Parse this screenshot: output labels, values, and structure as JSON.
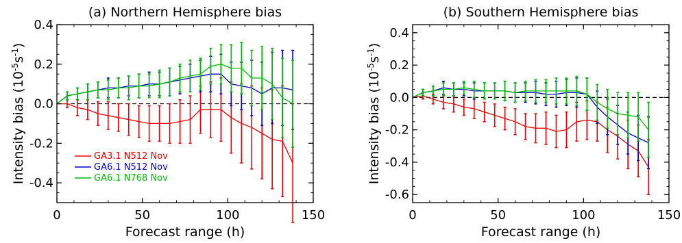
{
  "chart_data": [
    {
      "type": "line",
      "title": "(a) Northern Hemisphere bias",
      "xlabel": "Forecast range (h)",
      "ylabel": "Intensity bias (10",
      "ylabel_exponent": "-5",
      "ylabel_unit": "s",
      "ylabel_unit_exponent": "-1",
      "ylabel_close": ")",
      "xlim": [
        0,
        150
      ],
      "ylim": [
        -0.5,
        0.4
      ],
      "xticks": [
        0,
        50,
        100,
        150
      ],
      "xtick_labels": [
        "0",
        "50",
        "100",
        "150"
      ],
      "yticks": [
        -0.4,
        -0.2,
        0.0,
        0.2,
        0.4
      ],
      "ytick_labels": [
        "-0.4",
        "-0.2",
        "0.0",
        "0.2",
        "0.4"
      ],
      "zero_line": true,
      "legend": "lower-left",
      "x": [
        0,
        6,
        12,
        18,
        24,
        30,
        36,
        42,
        48,
        54,
        60,
        66,
        72,
        78,
        84,
        90,
        96,
        102,
        108,
        114,
        120,
        126,
        132,
        138
      ],
      "series": [
        {
          "name": "GA3.1 N512 Nov",
          "color": "#ee0000",
          "values": [
            0.0,
            0.0,
            -0.02,
            -0.03,
            -0.05,
            -0.06,
            -0.07,
            -0.08,
            -0.09,
            -0.1,
            -0.1,
            -0.1,
            -0.09,
            -0.08,
            -0.03,
            -0.03,
            -0.03,
            -0.07,
            -0.1,
            -0.12,
            -0.15,
            -0.18,
            -0.19,
            -0.3
          ],
          "errors": [
            0.0,
            0.02,
            0.04,
            0.05,
            0.06,
            0.07,
            0.07,
            0.08,
            0.08,
            0.09,
            0.09,
            0.1,
            0.11,
            0.12,
            0.12,
            0.14,
            0.16,
            0.18,
            0.2,
            0.21,
            0.23,
            0.25,
            0.28,
            0.3
          ]
        },
        {
          "name": "GA6.1 N512 Nov",
          "color": "#0000cc",
          "values": [
            0.0,
            0.04,
            0.05,
            0.06,
            0.07,
            0.08,
            0.08,
            0.09,
            0.09,
            0.1,
            0.1,
            0.11,
            0.12,
            0.13,
            0.14,
            0.15,
            0.15,
            0.1,
            0.09,
            0.08,
            0.05,
            0.08,
            0.08,
            0.07
          ],
          "errors": [
            0.0,
            0.02,
            0.03,
            0.04,
            0.04,
            0.05,
            0.05,
            0.05,
            0.06,
            0.06,
            0.06,
            0.07,
            0.07,
            0.07,
            0.08,
            0.09,
            0.1,
            0.11,
            0.12,
            0.14,
            0.16,
            0.18,
            0.19,
            0.2
          ]
        },
        {
          "name": "GA6.1 N768 Nov",
          "color": "#00bb00",
          "values": [
            0.0,
            0.04,
            0.05,
            0.06,
            0.07,
            0.07,
            0.08,
            0.08,
            0.09,
            0.09,
            0.1,
            0.11,
            0.13,
            0.14,
            0.15,
            0.19,
            0.2,
            0.18,
            0.18,
            0.13,
            0.13,
            0.1,
            0.03,
            0.0
          ],
          "errors": [
            0.0,
            0.02,
            0.03,
            0.04,
            0.04,
            0.05,
            0.05,
            0.06,
            0.06,
            0.06,
            0.07,
            0.07,
            0.07,
            0.08,
            0.08,
            0.09,
            0.1,
            0.12,
            0.13,
            0.14,
            0.16,
            0.18,
            0.2,
            0.22
          ]
        }
      ]
    },
    {
      "type": "line",
      "title": "(b) Southern Hemisphere bias",
      "xlabel": "Forecast range (h)",
      "ylabel": "Intensity bias (10",
      "ylabel_exponent": "-5",
      "ylabel_unit": "s",
      "ylabel_unit_exponent": "-1",
      "ylabel_close": ")",
      "xlim": [
        0,
        150
      ],
      "ylim": [
        -0.65,
        0.45
      ],
      "xticks": [
        0,
        50,
        100,
        150
      ],
      "xtick_labels": [
        "0",
        "50",
        "100",
        "150"
      ],
      "yticks": [
        -0.6,
        -0.4,
        -0.2,
        0.0,
        0.2,
        0.4
      ],
      "ytick_labels": [
        "-0.6",
        "-0.4",
        "-0.2",
        "0.0",
        "0.2",
        "0.4"
      ],
      "zero_line": true,
      "x": [
        0,
        6,
        12,
        18,
        24,
        30,
        36,
        42,
        48,
        54,
        60,
        66,
        72,
        78,
        84,
        90,
        96,
        102,
        108,
        114,
        120,
        126,
        132,
        138
      ],
      "series": [
        {
          "name": "GA3.1 N512 Nov",
          "color": "#ee0000",
          "values": [
            0.0,
            0.01,
            -0.01,
            -0.03,
            -0.04,
            -0.06,
            -0.07,
            -0.09,
            -0.11,
            -0.13,
            -0.15,
            -0.18,
            -0.19,
            -0.19,
            -0.21,
            -0.2,
            -0.15,
            -0.14,
            -0.15,
            -0.2,
            -0.24,
            -0.29,
            -0.33,
            -0.43
          ],
          "errors": [
            0.0,
            0.02,
            0.03,
            0.04,
            0.05,
            0.05,
            0.06,
            0.06,
            0.07,
            0.07,
            0.08,
            0.08,
            0.09,
            0.1,
            0.1,
            0.11,
            0.12,
            0.12,
            0.12,
            0.14,
            0.14,
            0.15,
            0.16,
            0.17
          ]
        },
        {
          "name": "GA6.1 N512 Nov",
          "color": "#0000cc",
          "values": [
            0.0,
            0.03,
            0.04,
            0.06,
            0.05,
            0.05,
            0.04,
            0.04,
            0.04,
            0.04,
            0.03,
            0.03,
            0.03,
            0.02,
            0.02,
            0.03,
            0.03,
            0.02,
            -0.06,
            -0.12,
            -0.17,
            -0.22,
            -0.25,
            -0.28
          ],
          "errors": [
            0.0,
            0.02,
            0.03,
            0.04,
            0.04,
            0.04,
            0.05,
            0.05,
            0.05,
            0.06,
            0.06,
            0.06,
            0.07,
            0.07,
            0.08,
            0.08,
            0.09,
            0.1,
            0.1,
            0.11,
            0.12,
            0.13,
            0.14,
            0.16
          ]
        },
        {
          "name": "GA6.1 N768 Nov",
          "color": "#00bb00",
          "values": [
            0.0,
            0.03,
            0.04,
            0.05,
            0.05,
            0.06,
            0.05,
            0.04,
            0.04,
            0.04,
            0.03,
            0.04,
            0.04,
            0.04,
            0.04,
            0.04,
            0.04,
            0.02,
            -0.03,
            -0.07,
            -0.1,
            -0.11,
            -0.12,
            -0.2
          ],
          "errors": [
            0.0,
            0.02,
            0.03,
            0.04,
            0.04,
            0.04,
            0.05,
            0.05,
            0.05,
            0.06,
            0.06,
            0.06,
            0.07,
            0.07,
            0.08,
            0.08,
            0.09,
            0.1,
            0.11,
            0.12,
            0.13,
            0.14,
            0.15,
            0.17
          ]
        }
      ]
    }
  ]
}
